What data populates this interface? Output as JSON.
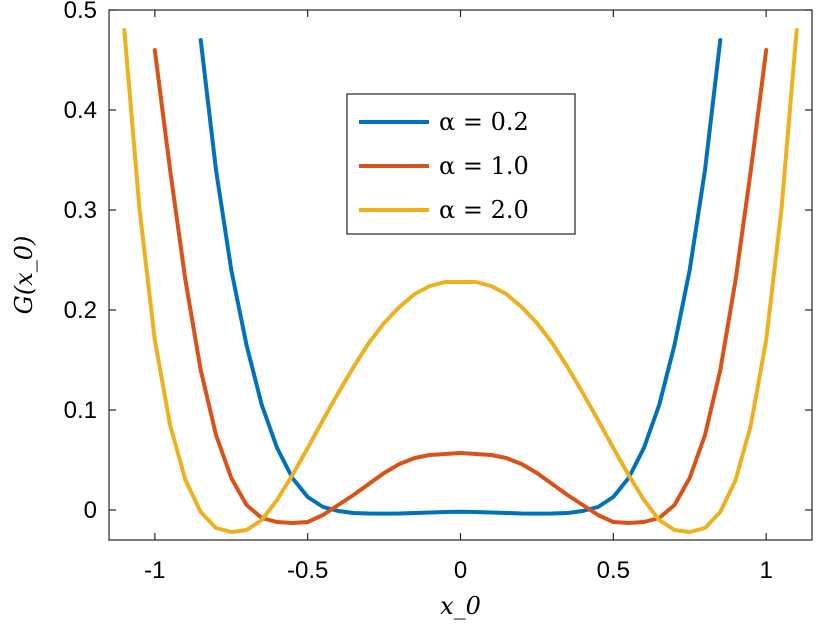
{
  "chart_data": {
    "type": "line",
    "xlabel": "x_0",
    "ylabel": "G(x_0)",
    "xlim": [
      -1.15,
      1.15
    ],
    "ylim": [
      -0.03,
      0.5
    ],
    "xticks": [
      -1,
      -0.5,
      0,
      0.5,
      1
    ],
    "xtick_labels": [
      "-1",
      "-0.5",
      "0",
      "0.5",
      "1"
    ],
    "yticks": [
      0,
      0.1,
      0.2,
      0.3,
      0.4,
      0.5
    ],
    "ytick_labels": [
      "0",
      "0.1",
      "0.2",
      "0.3",
      "0.4",
      "0.5"
    ],
    "grid": false,
    "legend_position": "top-center",
    "x": [
      -1.1,
      -1.05,
      -1.0,
      -0.95,
      -0.9,
      -0.85,
      -0.8,
      -0.75,
      -0.7,
      -0.65,
      -0.6,
      -0.55,
      -0.5,
      -0.45,
      -0.4,
      -0.35,
      -0.3,
      -0.25,
      -0.2,
      -0.15,
      -0.1,
      -0.05,
      0.0,
      0.05,
      0.1,
      0.15,
      0.2,
      0.25,
      0.3,
      0.35,
      0.4,
      0.45,
      0.5,
      0.55,
      0.6,
      0.65,
      0.7,
      0.75,
      0.8,
      0.85,
      0.9,
      0.95,
      1.0,
      1.05,
      1.1
    ],
    "series": [
      {
        "name": "α = 0.2",
        "color": "#0072BD",
        "values": [
          null,
          null,
          null,
          null,
          null,
          0.47,
          0.34,
          0.24,
          0.165,
          0.105,
          0.062,
          0.032,
          0.013,
          0.003,
          -0.001,
          -0.003,
          -0.0035,
          -0.0036,
          -0.0035,
          -0.003,
          -0.0025,
          -0.002,
          -0.0018,
          -0.002,
          -0.0025,
          -0.003,
          -0.0035,
          -0.0036,
          -0.0035,
          -0.003,
          -0.001,
          0.003,
          0.013,
          0.032,
          0.062,
          0.105,
          0.165,
          0.24,
          0.34,
          0.47,
          null,
          null,
          null,
          null,
          null
        ]
      },
      {
        "name": "α = 1.0",
        "color": "#D95319",
        "values": [
          null,
          null,
          0.46,
          0.34,
          0.23,
          0.14,
          0.075,
          0.032,
          0.005,
          -0.008,
          -0.012,
          -0.013,
          -0.012,
          -0.005,
          0.005,
          0.015,
          0.026,
          0.037,
          0.046,
          0.052,
          0.055,
          0.056,
          0.057,
          0.056,
          0.055,
          0.052,
          0.046,
          0.037,
          0.026,
          0.015,
          0.005,
          -0.005,
          -0.012,
          -0.013,
          -0.012,
          -0.008,
          0.005,
          0.032,
          0.075,
          0.14,
          0.23,
          0.34,
          0.46,
          null,
          null
        ]
      },
      {
        "name": "α = 2.0",
        "color": "#EDB120",
        "values": [
          0.48,
          0.3,
          0.17,
          0.085,
          0.03,
          -0.002,
          -0.018,
          -0.022,
          -0.02,
          -0.01,
          0.01,
          0.035,
          0.062,
          0.09,
          0.117,
          0.143,
          0.167,
          0.187,
          0.203,
          0.216,
          0.224,
          0.228,
          0.228,
          0.228,
          0.224,
          0.216,
          0.203,
          0.187,
          0.167,
          0.143,
          0.117,
          0.09,
          0.062,
          0.035,
          0.01,
          -0.01,
          -0.02,
          -0.022,
          -0.018,
          -0.002,
          0.03,
          0.085,
          0.17,
          0.3,
          0.48
        ]
      }
    ]
  }
}
